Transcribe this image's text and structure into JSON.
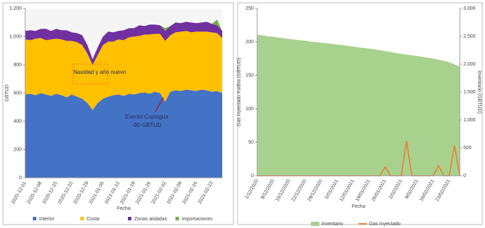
{
  "chart_data": [
    {
      "type": "area",
      "stacked": true,
      "x_label": "Fecha",
      "y_label": "GBTUD",
      "categories": [
        "2020-12-01",
        null,
        null,
        "2020-12-08",
        null,
        null,
        "2020-12-15",
        null,
        null,
        "2020-12-22",
        null,
        null,
        "2020-12-29",
        null,
        null,
        "2021-01-05",
        null,
        null,
        "2021-01-12",
        null,
        null,
        "2021-01-19",
        null,
        null,
        "2021-01-26",
        null,
        null,
        "2021-02-02",
        null,
        null,
        "2021-02-09",
        null,
        null,
        "2021-02-16",
        null,
        null,
        "2021-02-23",
        null,
        null
      ],
      "ylim": [
        0,
        1200
      ],
      "yticks": [
        0,
        200,
        400,
        600,
        800,
        {
          "value": 1000,
          "label": "1,000"
        },
        {
          "value": 1200,
          "label": "1,200"
        }
      ],
      "annotations": [
        "Navidad y año nuevo",
        "Evento Cupiagua",
        "-90 GBTUD"
      ],
      "series": [
        {
          "name": "Interior",
          "color": "#4472c4",
          "style": "area",
          "values": [
            590,
            595,
            585,
            600,
            590,
            580,
            595,
            585,
            570,
            590,
            575,
            560,
            530,
            480,
            530,
            560,
            575,
            585,
            590,
            580,
            595,
            590,
            600,
            605,
            595,
            610,
            600,
            540,
            610,
            620,
            615,
            625,
            620,
            615,
            625,
            620,
            610,
            615,
            600
          ]
        },
        {
          "name": "Costa",
          "color": "#ffc000",
          "style": "area",
          "values": [
            390,
            380,
            400,
            390,
            385,
            400,
            390,
            395,
            400,
            380,
            385,
            380,
            350,
            320,
            340,
            380,
            390,
            380,
            390,
            395,
            400,
            410,
            405,
            410,
            420,
            410,
            420,
            430,
            400,
            410,
            420,
            415,
            410,
            420,
            410,
            415,
            420,
            410,
            390
          ]
        },
        {
          "name": "Zonas aisladas",
          "color": "#7030a0",
          "style": "area",
          "values": [
            60,
            70,
            55,
            65,
            80,
            60,
            70,
            65,
            75,
            60,
            65,
            70,
            60,
            40,
            55,
            60,
            70,
            65,
            60,
            70,
            65,
            60,
            75,
            60,
            70,
            65,
            60,
            70,
            65,
            70,
            60,
            65,
            70,
            60,
            65,
            70,
            60,
            55,
            50
          ]
        },
        {
          "name": "Importaciones",
          "color": "#70ad47",
          "style": "area",
          "values": [
            0,
            0,
            0,
            0,
            0,
            0,
            0,
            0,
            0,
            0,
            0,
            0,
            0,
            0,
            0,
            0,
            0,
            0,
            0,
            0,
            0,
            0,
            0,
            0,
            0,
            0,
            0,
            20,
            0,
            0,
            0,
            0,
            0,
            0,
            0,
            0,
            0,
            40,
            0
          ]
        }
      ]
    },
    {
      "type": "combo",
      "x_label": "Fecha",
      "y_label": "Gas Inyectado Kudha (GBTUD)",
      "y2_label": "Inventario (GBTUD)",
      "categories": [
        "1/12/2020",
        null,
        null,
        "8/12/2020",
        null,
        null,
        "15/12/2020",
        null,
        null,
        "22/12/2020",
        null,
        null,
        "29/12/2020",
        null,
        null,
        "5/01/2021",
        null,
        null,
        "12/01/2021",
        null,
        null,
        "19/01/2021",
        null,
        null,
        "26/01/2021",
        null,
        null,
        "2/02/2021",
        null,
        null,
        "9/02/2021",
        null,
        null,
        "16/02/2021",
        null,
        null,
        "23/02/2021",
        null,
        null
      ],
      "ylim": [
        0,
        250
      ],
      "yticks": [
        0,
        50,
        100,
        150,
        200,
        250
      ],
      "y2lim": [
        0,
        3000
      ],
      "y2ticks": [
        0,
        500,
        {
          "value": 1000,
          "label": "1,000"
        },
        {
          "value": 1500,
          "label": "1,500"
        },
        {
          "value": 2000,
          "label": "2,000"
        },
        {
          "value": 2500,
          "label": "2,500"
        },
        {
          "value": 3000,
          "label": "3,000"
        }
      ],
      "series": [
        {
          "name": "Inventario",
          "color": "#a9d18e",
          "style": "area",
          "axis": "y2",
          "values": [
            2530,
            2515,
            2500,
            2490,
            2475,
            2465,
            2450,
            2440,
            2430,
            2420,
            2405,
            2395,
            2385,
            2375,
            2365,
            2350,
            2340,
            2330,
            2315,
            2300,
            2290,
            2280,
            2265,
            2250,
            2235,
            2220,
            2200,
            2185,
            2170,
            2160,
            2145,
            2130,
            2115,
            2100,
            2080,
            2060,
            2035,
            1995,
            1960
          ]
        },
        {
          "name": "Gas Inyectado",
          "color": "#ed7d31",
          "style": "line",
          "values": [
            0,
            0,
            0,
            0,
            0,
            0,
            0,
            0,
            0,
            0,
            0,
            0,
            0,
            0,
            0,
            0,
            0,
            0,
            0,
            0,
            0,
            0,
            0,
            0,
            13,
            0,
            0,
            0,
            52,
            0,
            0,
            0,
            0,
            0,
            15,
            0,
            0,
            45,
            0
          ]
        }
      ]
    }
  ]
}
